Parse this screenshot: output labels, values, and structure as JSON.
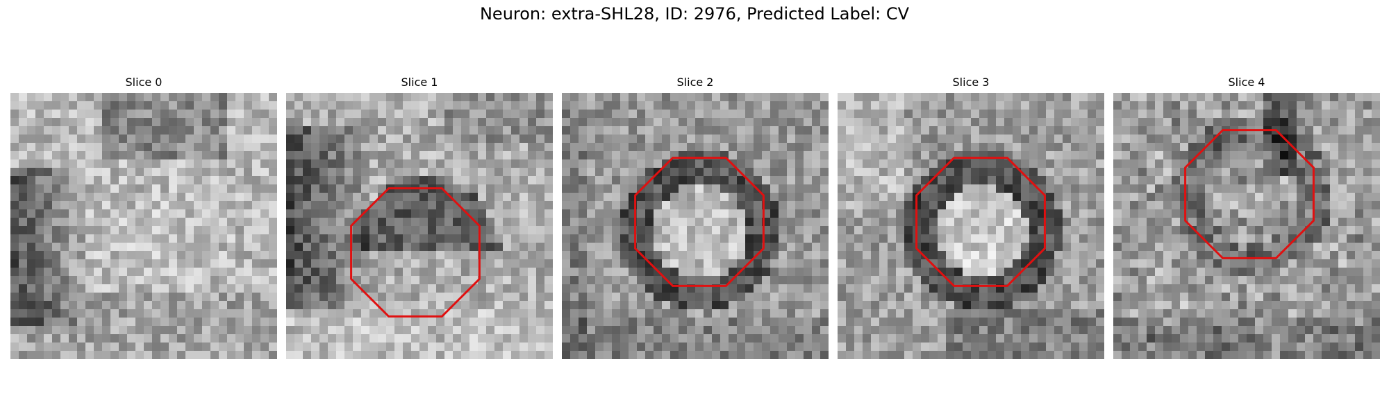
{
  "figure": {
    "title": "Neuron: extra-SHL28, ID: 2976, Predicted Label: CV"
  },
  "overlay_color": "#e01010",
  "colormap": "gray",
  "panels": [
    {
      "title": "Slice 0",
      "has_octagon": false,
      "dark_region": "left",
      "center_brightness": "light"
    },
    {
      "title": "Slice 1",
      "has_octagon": true,
      "dark_region": "left",
      "center_brightness": "mixed"
    },
    {
      "title": "Slice 2",
      "has_octagon": true,
      "dark_region": "ring",
      "center_brightness": "light"
    },
    {
      "title": "Slice 3",
      "has_octagon": true,
      "dark_region": "ring",
      "center_brightness": "light"
    },
    {
      "title": "Slice 4",
      "has_octagon": true,
      "dark_region": "top",
      "center_brightness": "mixed"
    }
  ]
}
